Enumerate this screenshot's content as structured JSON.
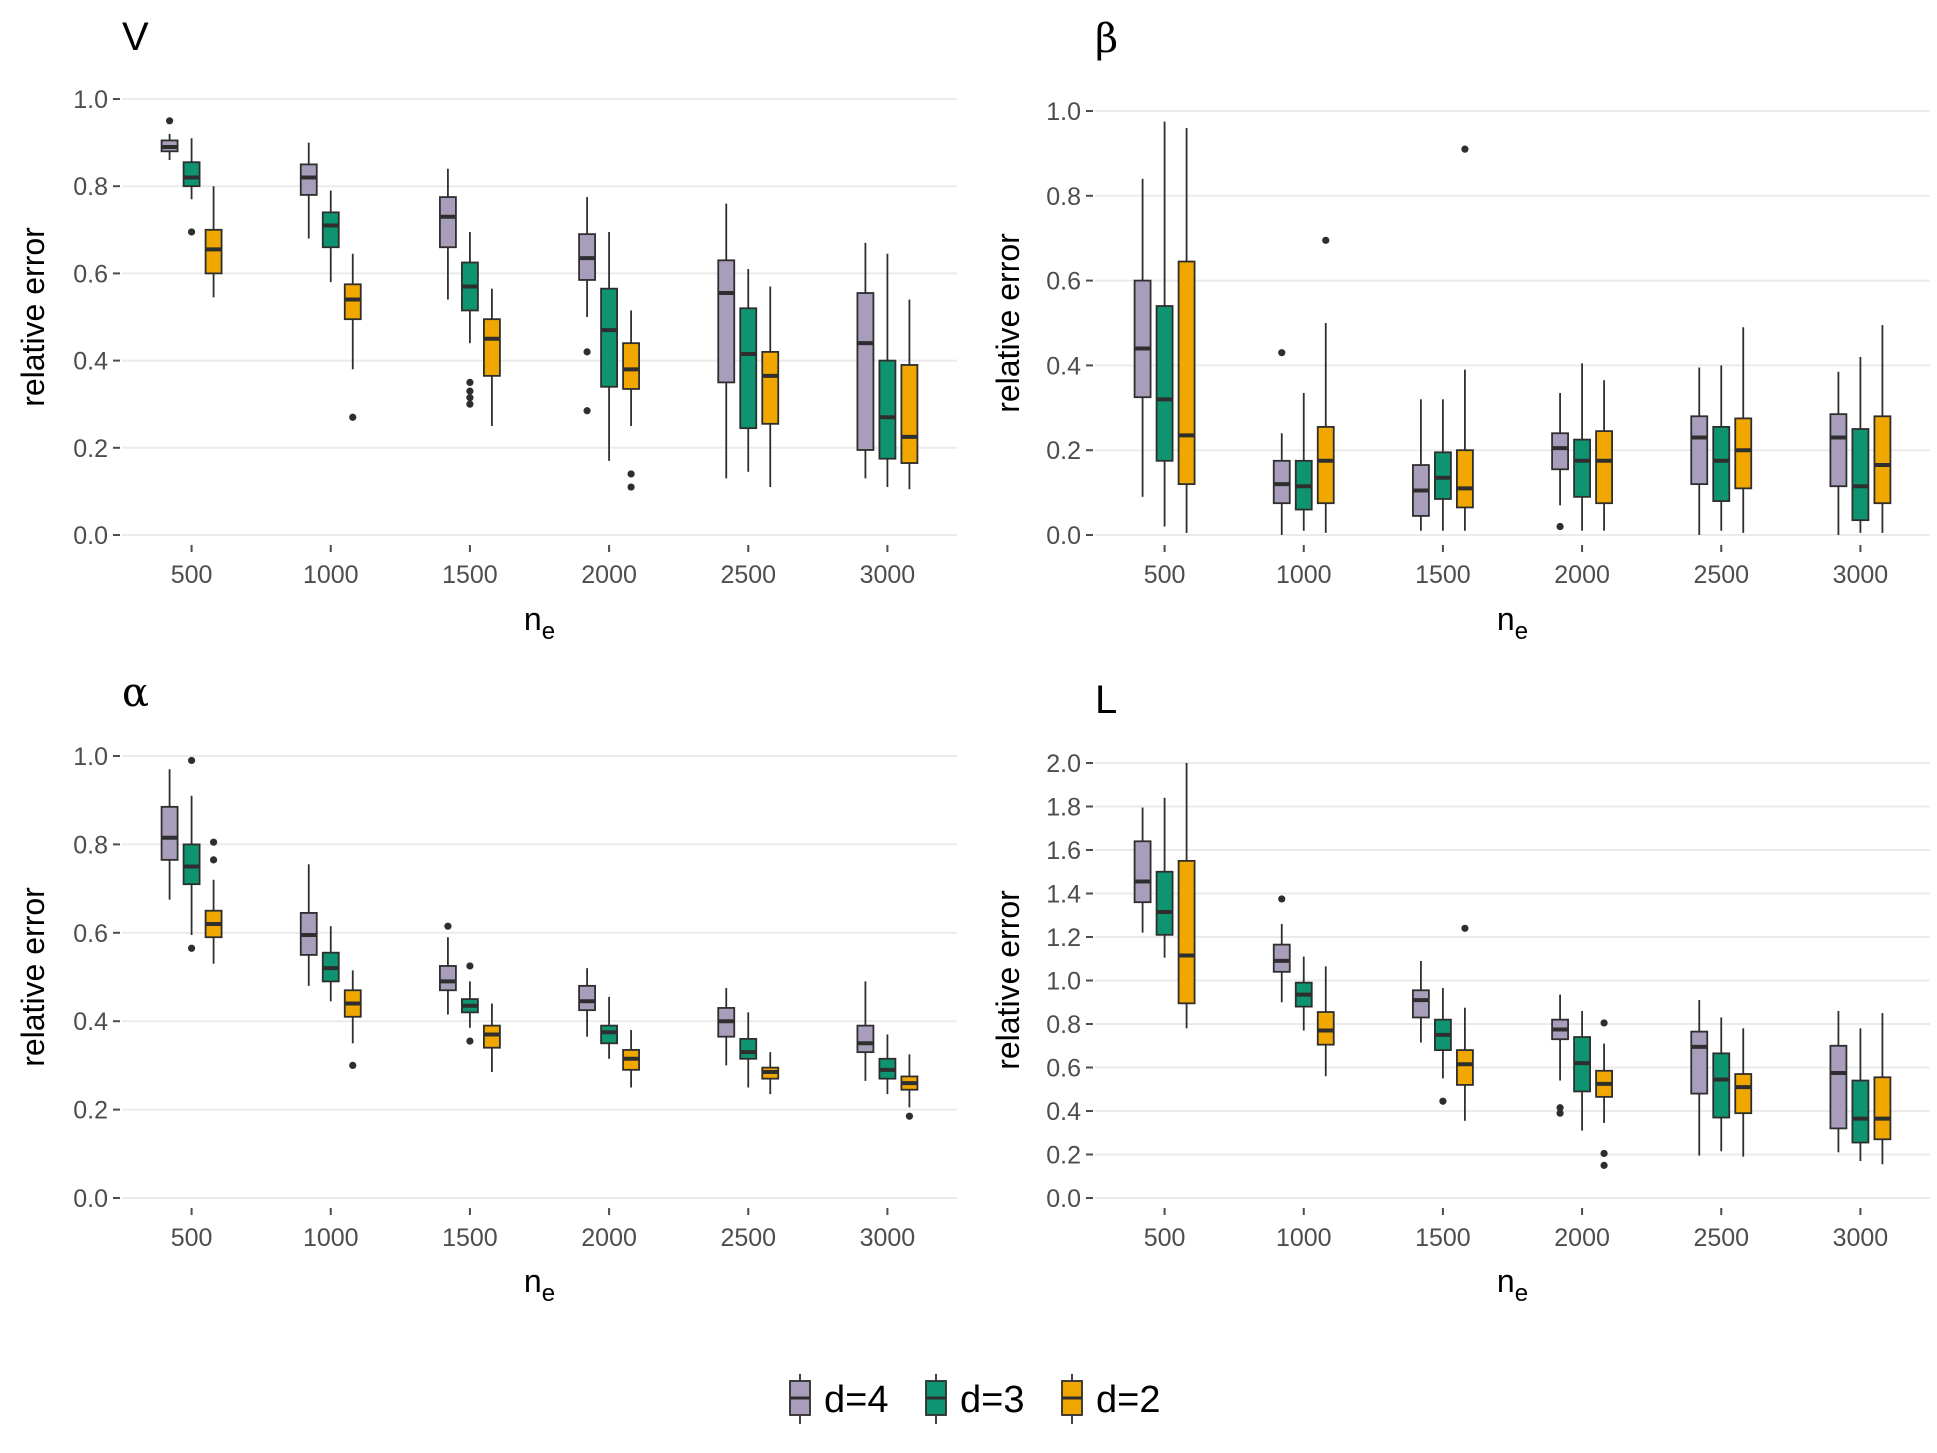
{
  "chart_data": [
    {
      "type": "box",
      "title": "V",
      "xlabel": "n_e",
      "ylabel": "relative error",
      "ylim": [
        0,
        1.0
      ],
      "yticks": [
        "0.0",
        "0.2",
        "0.4",
        "0.6",
        "0.8",
        "1.0"
      ],
      "categories": [
        "500",
        "1000",
        "1500",
        "2000",
        "2500",
        "3000"
      ],
      "series": [
        {
          "name": "d=4",
          "boxes": [
            {
              "min": 0.86,
              "q1": 0.88,
              "median": 0.89,
              "q3": 0.905,
              "max": 0.92,
              "outliers": [
                0.95
              ]
            },
            {
              "min": 0.68,
              "q1": 0.78,
              "median": 0.82,
              "q3": 0.85,
              "max": 0.9,
              "outliers": []
            },
            {
              "min": 0.54,
              "q1": 0.66,
              "median": 0.73,
              "q3": 0.775,
              "max": 0.84,
              "outliers": []
            },
            {
              "min": 0.5,
              "q1": 0.585,
              "median": 0.635,
              "q3": 0.69,
              "max": 0.775,
              "outliers": [
                0.42,
                0.285
              ]
            },
            {
              "min": 0.13,
              "q1": 0.35,
              "median": 0.555,
              "q3": 0.63,
              "max": 0.76,
              "outliers": []
            },
            {
              "min": 0.13,
              "q1": 0.195,
              "median": 0.44,
              "q3": 0.555,
              "max": 0.67,
              "outliers": []
            }
          ]
        },
        {
          "name": "d=3",
          "boxes": [
            {
              "min": 0.77,
              "q1": 0.8,
              "median": 0.82,
              "q3": 0.855,
              "max": 0.91,
              "outliers": [
                0.695
              ]
            },
            {
              "min": 0.58,
              "q1": 0.66,
              "median": 0.71,
              "q3": 0.74,
              "max": 0.79,
              "outliers": []
            },
            {
              "min": 0.44,
              "q1": 0.515,
              "median": 0.57,
              "q3": 0.625,
              "max": 0.695,
              "outliers": [
                0.35,
                0.33,
                0.315,
                0.3
              ]
            },
            {
              "min": 0.17,
              "q1": 0.34,
              "median": 0.47,
              "q3": 0.565,
              "max": 0.695,
              "outliers": []
            },
            {
              "min": 0.145,
              "q1": 0.245,
              "median": 0.415,
              "q3": 0.52,
              "max": 0.61,
              "outliers": []
            },
            {
              "min": 0.11,
              "q1": 0.175,
              "median": 0.27,
              "q3": 0.4,
              "max": 0.645,
              "outliers": []
            }
          ]
        },
        {
          "name": "d=2",
          "boxes": [
            {
              "min": 0.545,
              "q1": 0.6,
              "median": 0.655,
              "q3": 0.7,
              "max": 0.8,
              "outliers": []
            },
            {
              "min": 0.38,
              "q1": 0.495,
              "median": 0.54,
              "q3": 0.575,
              "max": 0.645,
              "outliers": [
                0.27
              ]
            },
            {
              "min": 0.25,
              "q1": 0.365,
              "median": 0.45,
              "q3": 0.495,
              "max": 0.565,
              "outliers": []
            },
            {
              "min": 0.25,
              "q1": 0.335,
              "median": 0.38,
              "q3": 0.44,
              "max": 0.515,
              "outliers": [
                0.14,
                0.11
              ]
            },
            {
              "min": 0.11,
              "q1": 0.255,
              "median": 0.365,
              "q3": 0.42,
              "max": 0.57,
              "outliers": []
            },
            {
              "min": 0.105,
              "q1": 0.165,
              "median": 0.225,
              "q3": 0.39,
              "max": 0.54,
              "outliers": []
            }
          ]
        }
      ]
    },
    {
      "type": "box",
      "title": "β",
      "xlabel": "n_e",
      "ylabel": "relative error",
      "ylim": [
        0,
        1.0
      ],
      "yticks": [
        "0.0",
        "0.2",
        "0.4",
        "0.6",
        "0.8",
        "1.0"
      ],
      "categories": [
        "500",
        "1000",
        "1500",
        "2000",
        "2500",
        "3000"
      ],
      "series": [
        {
          "name": "d=4",
          "boxes": [
            {
              "min": 0.09,
              "q1": 0.325,
              "median": 0.44,
              "q3": 0.6,
              "max": 0.84,
              "outliers": []
            },
            {
              "min": 0.0,
              "q1": 0.075,
              "median": 0.12,
              "q3": 0.175,
              "max": 0.24,
              "outliers": [
                0.43
              ]
            },
            {
              "min": 0.01,
              "q1": 0.045,
              "median": 0.105,
              "q3": 0.165,
              "max": 0.32,
              "outliers": []
            },
            {
              "min": 0.07,
              "q1": 0.155,
              "median": 0.205,
              "q3": 0.24,
              "max": 0.335,
              "outliers": [
                0.02
              ]
            },
            {
              "min": 0.0,
              "q1": 0.12,
              "median": 0.23,
              "q3": 0.28,
              "max": 0.395,
              "outliers": []
            },
            {
              "min": 0.0,
              "q1": 0.115,
              "median": 0.23,
              "q3": 0.285,
              "max": 0.385,
              "outliers": []
            }
          ]
        },
        {
          "name": "d=3",
          "boxes": [
            {
              "min": 0.02,
              "q1": 0.175,
              "median": 0.32,
              "q3": 0.54,
              "max": 0.975,
              "outliers": []
            },
            {
              "min": 0.01,
              "q1": 0.06,
              "median": 0.115,
              "q3": 0.175,
              "max": 0.335,
              "outliers": []
            },
            {
              "min": 0.01,
              "q1": 0.085,
              "median": 0.135,
              "q3": 0.195,
              "max": 0.32,
              "outliers": []
            },
            {
              "min": 0.01,
              "q1": 0.09,
              "median": 0.175,
              "q3": 0.225,
              "max": 0.405,
              "outliers": []
            },
            {
              "min": 0.01,
              "q1": 0.08,
              "median": 0.175,
              "q3": 0.255,
              "max": 0.4,
              "outliers": []
            },
            {
              "min": 0.005,
              "q1": 0.035,
              "median": 0.115,
              "q3": 0.25,
              "max": 0.42,
              "outliers": []
            }
          ]
        },
        {
          "name": "d=2",
          "boxes": [
            {
              "min": 0.005,
              "q1": 0.12,
              "median": 0.235,
              "q3": 0.645,
              "max": 0.96,
              "outliers": []
            },
            {
              "min": 0.005,
              "q1": 0.075,
              "median": 0.175,
              "q3": 0.255,
              "max": 0.5,
              "outliers": [
                0.695
              ]
            },
            {
              "min": 0.01,
              "q1": 0.065,
              "median": 0.11,
              "q3": 0.2,
              "max": 0.39,
              "outliers": [
                0.91
              ]
            },
            {
              "min": 0.01,
              "q1": 0.075,
              "median": 0.175,
              "q3": 0.245,
              "max": 0.365,
              "outliers": []
            },
            {
              "min": 0.005,
              "q1": 0.11,
              "median": 0.2,
              "q3": 0.275,
              "max": 0.49,
              "outliers": []
            },
            {
              "min": 0.005,
              "q1": 0.075,
              "median": 0.165,
              "q3": 0.28,
              "max": 0.495,
              "outliers": []
            }
          ]
        }
      ]
    },
    {
      "type": "box",
      "title": "α",
      "xlabel": "n_e",
      "ylabel": "relative error",
      "ylim": [
        0,
        1.0
      ],
      "yticks": [
        "0.0",
        "0.2",
        "0.4",
        "0.6",
        "0.8",
        "1.0"
      ],
      "categories": [
        "500",
        "1000",
        "1500",
        "2000",
        "2500",
        "3000"
      ],
      "series": [
        {
          "name": "d=4",
          "boxes": [
            {
              "min": 0.675,
              "q1": 0.765,
              "median": 0.815,
              "q3": 0.885,
              "max": 0.97,
              "outliers": []
            },
            {
              "min": 0.48,
              "q1": 0.55,
              "median": 0.595,
              "q3": 0.645,
              "max": 0.755,
              "outliers": []
            },
            {
              "min": 0.415,
              "q1": 0.47,
              "median": 0.49,
              "q3": 0.525,
              "max": 0.59,
              "outliers": [
                0.615
              ]
            },
            {
              "min": 0.365,
              "q1": 0.425,
              "median": 0.445,
              "q3": 0.48,
              "max": 0.52,
              "outliers": []
            },
            {
              "min": 0.3,
              "q1": 0.365,
              "median": 0.4,
              "q3": 0.43,
              "max": 0.475,
              "outliers": []
            },
            {
              "min": 0.265,
              "q1": 0.33,
              "median": 0.35,
              "q3": 0.39,
              "max": 0.49,
              "outliers": []
            }
          ]
        },
        {
          "name": "d=3",
          "boxes": [
            {
              "min": 0.595,
              "q1": 0.71,
              "median": 0.75,
              "q3": 0.8,
              "max": 0.91,
              "outliers": [
                0.99,
                0.565
              ]
            },
            {
              "min": 0.445,
              "q1": 0.49,
              "median": 0.52,
              "q3": 0.555,
              "max": 0.615,
              "outliers": []
            },
            {
              "min": 0.385,
              "q1": 0.42,
              "median": 0.435,
              "q3": 0.45,
              "max": 0.49,
              "outliers": [
                0.525,
                0.355
              ]
            },
            {
              "min": 0.315,
              "q1": 0.35,
              "median": 0.375,
              "q3": 0.39,
              "max": 0.455,
              "outliers": []
            },
            {
              "min": 0.25,
              "q1": 0.315,
              "median": 0.33,
              "q3": 0.36,
              "max": 0.42,
              "outliers": []
            },
            {
              "min": 0.235,
              "q1": 0.27,
              "median": 0.29,
              "q3": 0.315,
              "max": 0.37,
              "outliers": []
            }
          ]
        },
        {
          "name": "d=2",
          "boxes": [
            {
              "min": 0.53,
              "q1": 0.59,
              "median": 0.62,
              "q3": 0.65,
              "max": 0.72,
              "outliers": [
                0.805,
                0.765
              ]
            },
            {
              "min": 0.35,
              "q1": 0.41,
              "median": 0.44,
              "q3": 0.47,
              "max": 0.515,
              "outliers": [
                0.3
              ]
            },
            {
              "min": 0.285,
              "q1": 0.34,
              "median": 0.37,
              "q3": 0.39,
              "max": 0.44,
              "outliers": []
            },
            {
              "min": 0.25,
              "q1": 0.29,
              "median": 0.315,
              "q3": 0.335,
              "max": 0.38,
              "outliers": []
            },
            {
              "min": 0.235,
              "q1": 0.27,
              "median": 0.285,
              "q3": 0.295,
              "max": 0.33,
              "outliers": []
            },
            {
              "min": 0.205,
              "q1": 0.245,
              "median": 0.26,
              "q3": 0.275,
              "max": 0.325,
              "outliers": [
                0.185
              ]
            }
          ]
        }
      ]
    },
    {
      "type": "box",
      "title": "L",
      "xlabel": "n_e",
      "ylabel": "relative error",
      "ylim": [
        0,
        2.0
      ],
      "yticks": [
        "0.0",
        "0.2",
        "0.4",
        "0.6",
        "0.8",
        "1.0",
        "1.2",
        "1.4",
        "1.6",
        "1.8",
        "2.0"
      ],
      "categories": [
        "500",
        "1000",
        "1500",
        "2000",
        "2500",
        "3000"
      ],
      "series": [
        {
          "name": "d=4",
          "boxes": [
            {
              "min": 1.22,
              "q1": 1.36,
              "median": 1.455,
              "q3": 1.64,
              "max": 1.795,
              "outliers": []
            },
            {
              "min": 0.9,
              "q1": 1.04,
              "median": 1.09,
              "q3": 1.165,
              "max": 1.26,
              "outliers": [
                1.375
              ]
            },
            {
              "min": 0.715,
              "q1": 0.83,
              "median": 0.91,
              "q3": 0.955,
              "max": 1.09,
              "outliers": []
            },
            {
              "min": 0.54,
              "q1": 0.73,
              "median": 0.775,
              "q3": 0.82,
              "max": 0.935,
              "outliers": [
                0.415,
                0.39
              ]
            },
            {
              "min": 0.195,
              "q1": 0.48,
              "median": 0.695,
              "q3": 0.765,
              "max": 0.91,
              "outliers": []
            },
            {
              "min": 0.21,
              "q1": 0.32,
              "median": 0.575,
              "q3": 0.7,
              "max": 0.86,
              "outliers": []
            }
          ]
        },
        {
          "name": "d=3",
          "boxes": [
            {
              "min": 1.105,
              "q1": 1.21,
              "median": 1.315,
              "q3": 1.5,
              "max": 1.84,
              "outliers": []
            },
            {
              "min": 0.77,
              "q1": 0.88,
              "median": 0.935,
              "q3": 0.99,
              "max": 1.11,
              "outliers": []
            },
            {
              "min": 0.55,
              "q1": 0.68,
              "median": 0.75,
              "q3": 0.82,
              "max": 0.965,
              "outliers": [
                0.445
              ]
            },
            {
              "min": 0.31,
              "q1": 0.49,
              "median": 0.62,
              "q3": 0.74,
              "max": 0.86,
              "outliers": []
            },
            {
              "min": 0.215,
              "q1": 0.37,
              "median": 0.545,
              "q3": 0.665,
              "max": 0.83,
              "outliers": []
            },
            {
              "min": 0.17,
              "q1": 0.255,
              "median": 0.365,
              "q3": 0.54,
              "max": 0.78,
              "outliers": []
            }
          ]
        },
        {
          "name": "d=2",
          "boxes": [
            {
              "min": 0.78,
              "q1": 0.895,
              "median": 1.115,
              "q3": 1.55,
              "max": 2.0,
              "outliers": []
            },
            {
              "min": 0.56,
              "q1": 0.705,
              "median": 0.77,
              "q3": 0.855,
              "max": 1.065,
              "outliers": []
            },
            {
              "min": 0.355,
              "q1": 0.52,
              "median": 0.615,
              "q3": 0.68,
              "max": 0.875,
              "outliers": [
                1.24
              ]
            },
            {
              "min": 0.345,
              "q1": 0.465,
              "median": 0.525,
              "q3": 0.585,
              "max": 0.71,
              "outliers": [
                0.805,
                0.205,
                0.15
              ]
            },
            {
              "min": 0.19,
              "q1": 0.39,
              "median": 0.51,
              "q3": 0.57,
              "max": 0.78,
              "outliers": []
            },
            {
              "min": 0.155,
              "q1": 0.27,
              "median": 0.365,
              "q3": 0.555,
              "max": 0.85,
              "outliers": []
            }
          ]
        }
      ]
    }
  ],
  "colors": {
    "d=4": "#a99dbc",
    "d=3": "#0e9470",
    "d=2": "#f0a700",
    "line": "#2e2e2e",
    "grid": "#ebebeb"
  },
  "legend": {
    "position": "bottom",
    "labels": [
      "d=4",
      "d=3",
      "d=2"
    ]
  }
}
